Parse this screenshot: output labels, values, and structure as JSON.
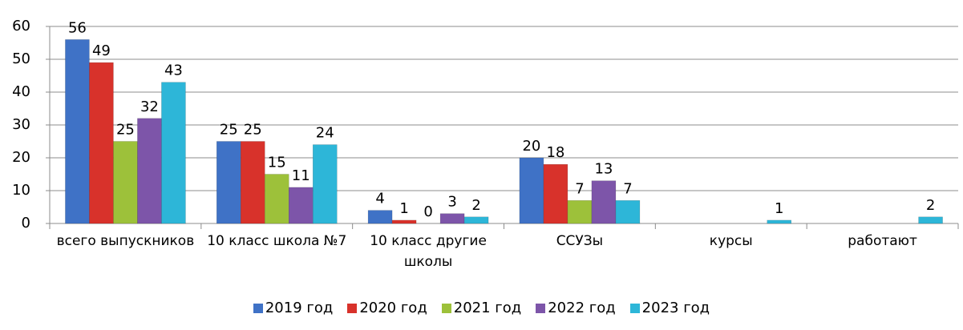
{
  "chart_data": {
    "type": "bar",
    "categories": [
      "всего выпускников",
      "10 класс  школа №7",
      "10 класс другие школы",
      "ССУЗы",
      "курсы",
      "работают"
    ],
    "series": [
      {
        "name": "2019 год",
        "color": "#3f72c6",
        "values": [
          56,
          25,
          4,
          20,
          null,
          null
        ]
      },
      {
        "name": "2020 год",
        "color": "#d8322b",
        "values": [
          49,
          25,
          1,
          18,
          null,
          null
        ]
      },
      {
        "name": "2021 год",
        "color": "#9dc13a",
        "values": [
          25,
          15,
          0,
          7,
          null,
          null
        ]
      },
      {
        "name": "2022 год",
        "color": "#7d55a9",
        "values": [
          32,
          11,
          3,
          13,
          null,
          null
        ]
      },
      {
        "name": "2023 год",
        "color": "#2db6d8",
        "values": [
          43,
          24,
          2,
          7,
          1,
          2
        ]
      }
    ],
    "ylim": [
      0,
      60
    ],
    "yticks": [
      0,
      10,
      20,
      30,
      40,
      50,
      60
    ],
    "grid": true,
    "legend": "bottom"
  }
}
